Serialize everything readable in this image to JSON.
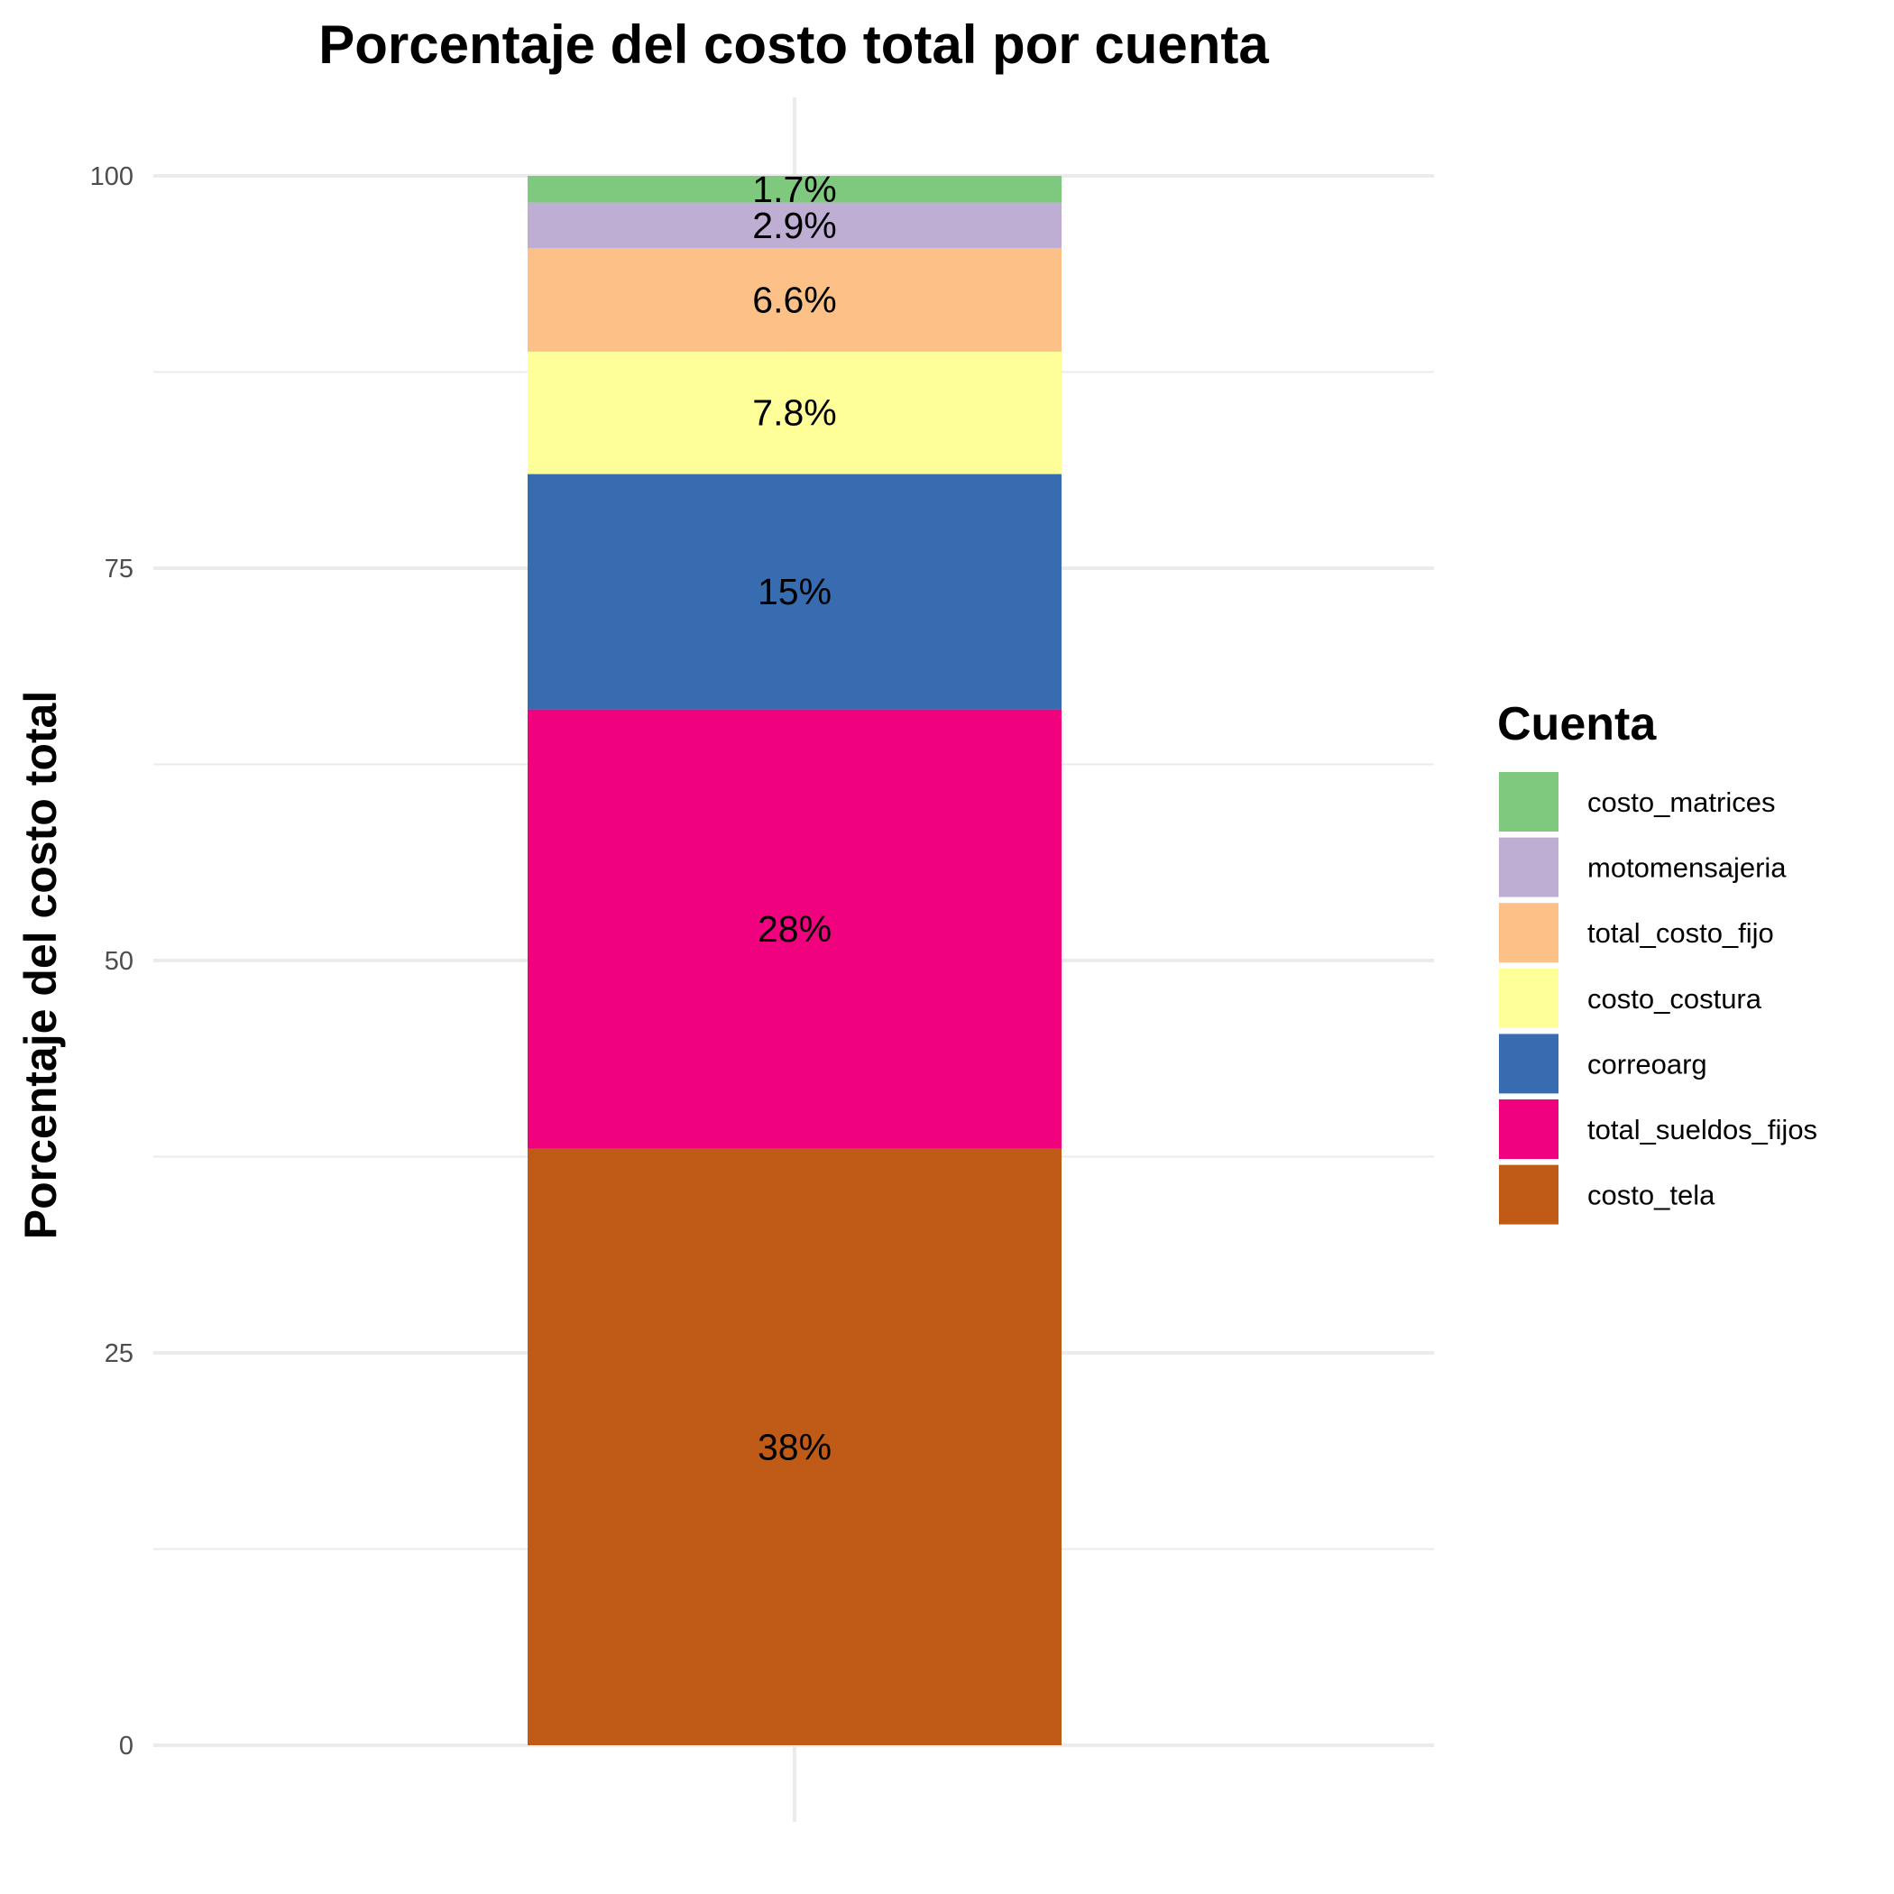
{
  "chart_data": {
    "type": "bar",
    "stacked": true,
    "title": "Porcentaje del costo total por cuenta",
    "xlabel": "",
    "ylabel": "Porcentaje del costo total",
    "ylim": [
      0,
      100
    ],
    "yticks": [
      0,
      25,
      50,
      75,
      100
    ],
    "grid": true,
    "legend": {
      "title": "Cuenta",
      "position": "right"
    },
    "series": [
      {
        "name": "costo_tela",
        "value": 38,
        "label": "38%",
        "color": "#bf5b17"
      },
      {
        "name": "total_sueldos_fijos",
        "value": 28,
        "label": "28%",
        "color": "#f0027f"
      },
      {
        "name": "correoarg",
        "value": 15,
        "label": "15%",
        "color": "#386cb0"
      },
      {
        "name": "costo_costura",
        "value": 7.8,
        "label": "7.8%",
        "color": "#ffff99"
      },
      {
        "name": "total_costo_fijo",
        "value": 6.6,
        "label": "6.6%",
        "color": "#fdc086"
      },
      {
        "name": "motomensajeria",
        "value": 2.9,
        "label": "2.9%",
        "color": "#beaed4"
      },
      {
        "name": "costo_matrices",
        "value": 1.7,
        "label": "1.7%",
        "color": "#7fc97f"
      }
    ]
  }
}
